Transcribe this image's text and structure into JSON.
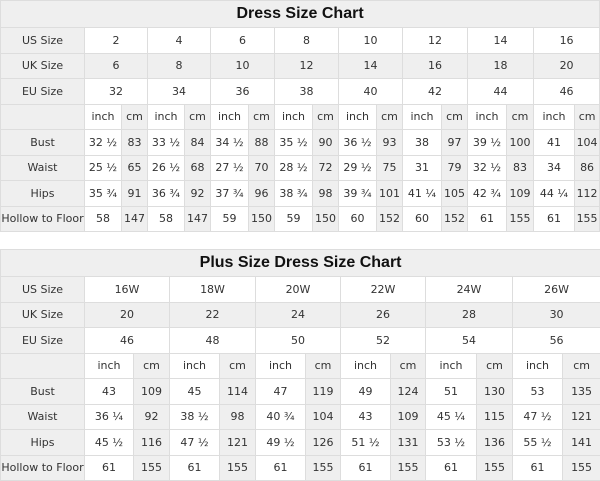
{
  "tables": [
    {
      "title": "Dress Size Chart",
      "size_rows": [
        {
          "label": "US Size",
          "values": [
            "2",
            "4",
            "6",
            "8",
            "10",
            "12",
            "14",
            "16"
          ]
        },
        {
          "label": "UK Size",
          "values": [
            "6",
            "8",
            "10",
            "12",
            "14",
            "16",
            "18",
            "20"
          ]
        },
        {
          "label": "EU Size",
          "values": [
            "32",
            "34",
            "36",
            "38",
            "40",
            "42",
            "44",
            "46"
          ]
        }
      ],
      "units": [
        "inch",
        "cm"
      ],
      "measure_rows": [
        {
          "label": "Bust",
          "values": [
            "32 ½",
            "83",
            "33 ½",
            "84",
            "34 ½",
            "88",
            "35 ½",
            "90",
            "36 ½",
            "93",
            "38",
            "97",
            "39 ½",
            "100",
            "41",
            "104"
          ]
        },
        {
          "label": "Waist",
          "values": [
            "25 ½",
            "65",
            "26 ½",
            "68",
            "27 ½",
            "70",
            "28 ½",
            "72",
            "29 ½",
            "75",
            "31",
            "79",
            "32 ½",
            "83",
            "34",
            "86"
          ]
        },
        {
          "label": "Hips",
          "values": [
            "35 ¾",
            "91",
            "36 ¾",
            "92",
            "37 ¾",
            "96",
            "38 ¾",
            "98",
            "39 ¾",
            "101",
            "41 ¼",
            "105",
            "42 ¾",
            "109",
            "44 ¼",
            "112"
          ]
        },
        {
          "label": "Hollow to Floor",
          "values": [
            "58",
            "147",
            "58",
            "147",
            "59",
            "150",
            "59",
            "150",
            "60",
            "152",
            "60",
            "152",
            "61",
            "155",
            "61",
            "155"
          ]
        }
      ]
    },
    {
      "title": "Plus Size Dress Size Chart",
      "size_rows": [
        {
          "label": "US Size",
          "values": [
            "16W",
            "18W",
            "20W",
            "22W",
            "24W",
            "26W"
          ]
        },
        {
          "label": "UK Size",
          "values": [
            "20",
            "22",
            "24",
            "26",
            "28",
            "30"
          ]
        },
        {
          "label": "EU Size",
          "values": [
            "46",
            "48",
            "50",
            "52",
            "54",
            "56"
          ]
        }
      ],
      "units": [
        "inch",
        "cm"
      ],
      "measure_rows": [
        {
          "label": "Bust",
          "values": [
            "43",
            "109",
            "45",
            "114",
            "47",
            "119",
            "49",
            "124",
            "51",
            "130",
            "53",
            "135"
          ]
        },
        {
          "label": "Waist",
          "values": [
            "36 ¼",
            "92",
            "38 ½",
            "98",
            "40 ¾",
            "104",
            "43",
            "109",
            "45 ¼",
            "115",
            "47 ½",
            "121"
          ]
        },
        {
          "label": "Hips",
          "values": [
            "45 ½",
            "116",
            "47 ½",
            "121",
            "49 ½",
            "126",
            "51 ½",
            "131",
            "53 ½",
            "136",
            "55 ½",
            "141"
          ]
        },
        {
          "label": "Hollow to Floor",
          "values": [
            "61",
            "155",
            "61",
            "155",
            "61",
            "155",
            "61",
            "155",
            "61",
            "155",
            "61",
            "155"
          ]
        }
      ]
    }
  ]
}
